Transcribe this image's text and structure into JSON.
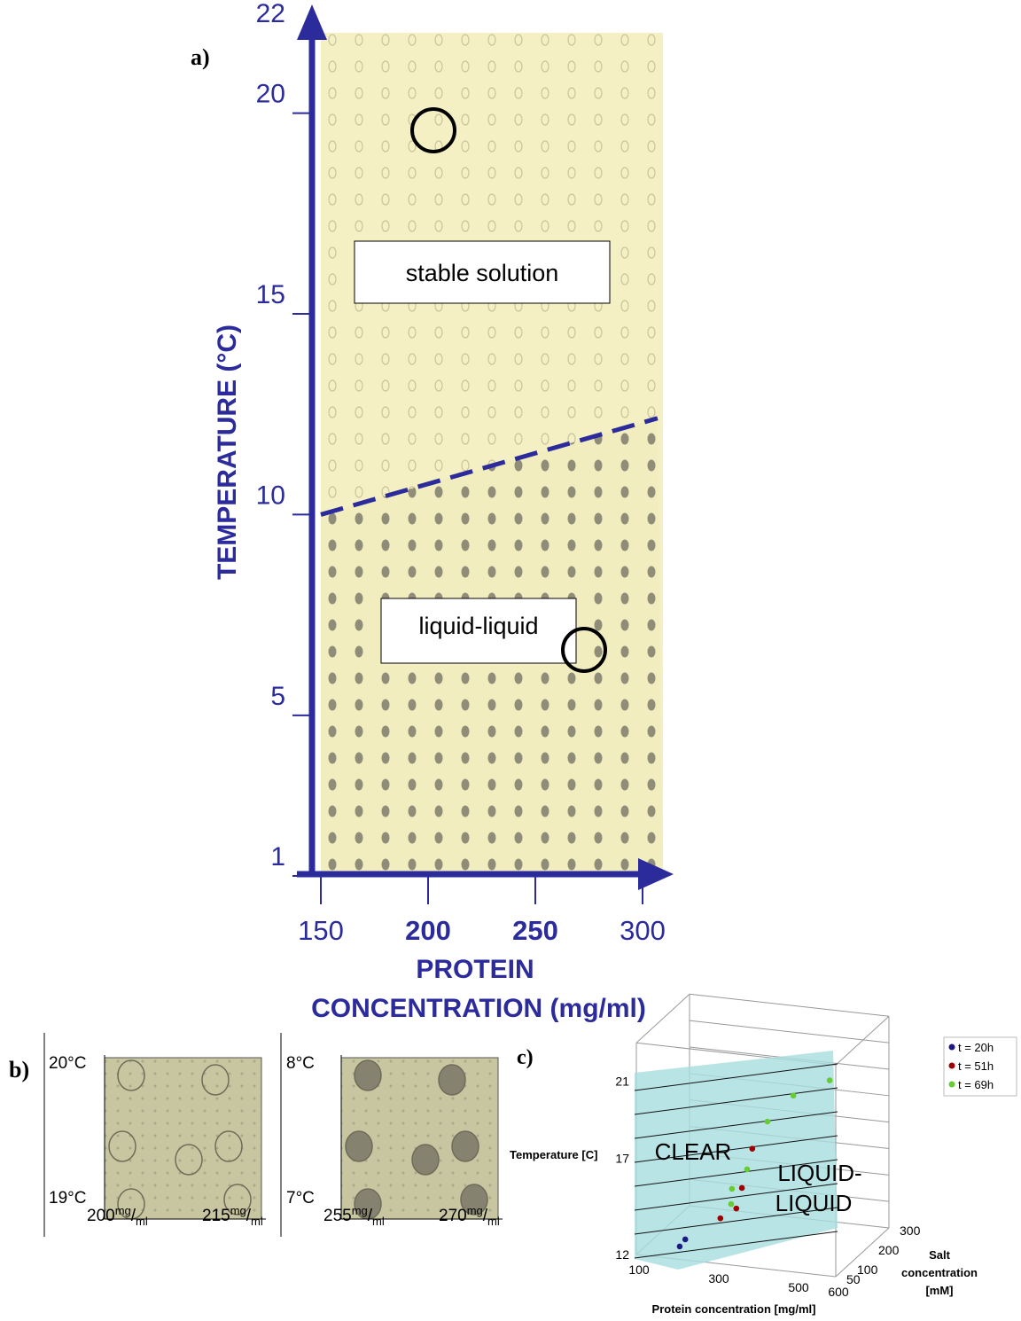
{
  "panel_a": {
    "label": "a)",
    "y_title": "TEMPERATURE (°C)",
    "x_title": [
      "PROTEIN",
      "CONCENTRATION (mg/ml)"
    ],
    "xlim": [
      150,
      300
    ],
    "ylim": [
      1,
      22
    ],
    "xticks": [
      150,
      200,
      250,
      300
    ],
    "yticks": [
      1,
      5,
      10,
      15,
      20,
      22
    ],
    "regions": [
      "stable solution",
      "liquid-liquid"
    ],
    "boundary": {
      "x": [
        150,
        307
      ],
      "y": [
        10,
        12.4
      ]
    },
    "axis_color": "#2b2b9c"
  },
  "panel_b": {
    "label": "b)",
    "unit": {
      "sup": "mg",
      "slash": "/",
      "sub": "ml"
    },
    "images": [
      {
        "temp_top": "20°C",
        "temp_bottom": "19°C",
        "conc_left": 200,
        "conc_right": 215,
        "filled": false
      },
      {
        "temp_top": "8°C",
        "temp_bottom": "7°C",
        "conc_left": 255,
        "conc_right": 270,
        "filled": true
      }
    ]
  },
  "panel_c": {
    "label": "c)",
    "temperature_title": "Temperature [C]",
    "protein_title": "Protein concentration [mg/ml]",
    "salt_title": [
      "Salt",
      "concentration",
      "[mM]"
    ],
    "regions": [
      "CLEAR",
      "LIQUID-",
      "LIQUID"
    ],
    "protein_lim": [
      100,
      600
    ],
    "salt_lim": [
      50,
      300
    ],
    "temperature_lim": [
      12,
      23
    ],
    "temperature_ticks": [
      12,
      17,
      21
    ],
    "protein_ticks": [
      100,
      300,
      500,
      600
    ],
    "salt_ticks": [
      50,
      100,
      200,
      300
    ],
    "series": [
      {
        "name": "t = 20h",
        "color": "#1a1a80",
        "protein": [
          182,
          196
        ],
        "salt": [
          100,
          100
        ],
        "temperature": [
          12.1,
          12.5
        ]
      },
      {
        "name": "t = 51h",
        "color": "#a00000",
        "protein": [
          284,
          324,
          338,
          364
        ],
        "salt": [
          100,
          100,
          100,
          100
        ],
        "temperature": [
          13.8,
          14.4,
          15.5,
          17.6
        ]
      },
      {
        "name": "t = 69h",
        "color": "#66cc33",
        "protein": [
          311,
          313,
          351,
          402,
          467,
          558
        ],
        "salt": [
          100,
          100,
          100,
          100,
          100,
          100
        ],
        "temperature": [
          14.6,
          15.4,
          16.5,
          19.1,
          20.6,
          21.6
        ]
      }
    ]
  }
}
